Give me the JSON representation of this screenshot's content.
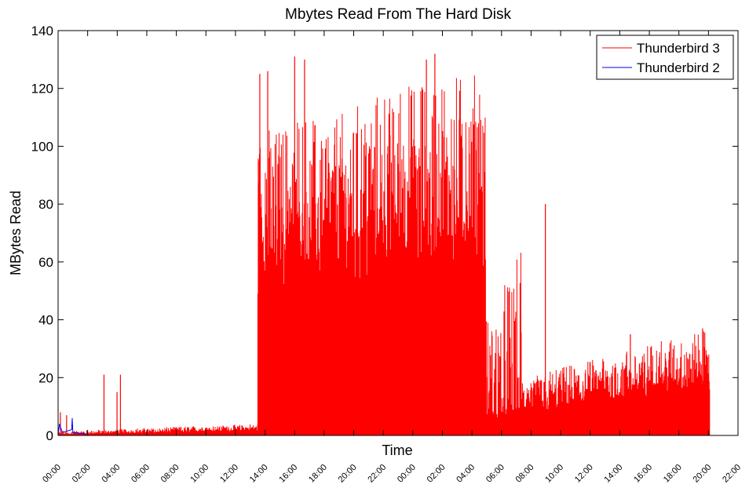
{
  "chart_data": {
    "type": "line",
    "title": "Mbytes Read From The Hard Disk",
    "xlabel": "Time",
    "ylabel": "MBytes Read",
    "ylim": [
      0,
      140
    ],
    "yticks": [
      0,
      20,
      40,
      60,
      80,
      100,
      120,
      140
    ],
    "xlim": [
      0,
      24
    ],
    "xtick_labels": [
      "00:00",
      "02:00",
      "04:00",
      "06:00",
      "08:00",
      "10:00",
      "12:00",
      "14:00",
      "16:00",
      "18:00",
      "20:00",
      "22:00",
      "00:00",
      "02:00",
      "04:00",
      "06:00",
      "08:00",
      "10:00",
      "12:00",
      "14:00",
      "16:00",
      "18:00",
      "20:00",
      "22:00"
    ],
    "x_unit": "hours since first 00:00 tick (2-hour interval between ticks)",
    "legend_position": "top-right",
    "grid": false,
    "series": [
      {
        "name": "Thunderbird 3",
        "color": "#ff0000",
        "segments": [
          {
            "x_start": 0.0,
            "x_end": 7.05,
            "base": [
              0.5,
              2.2
            ],
            "peak": [
              1.5,
              4.0
            ]
          },
          {
            "x_start": 7.05,
            "x_end": 15.1,
            "base": [
              70,
              80
            ],
            "peak": [
              105,
              130
            ]
          },
          {
            "x_start": 15.1,
            "x_end": 16.4,
            "base": [
              8,
              10
            ],
            "peak": [
              40,
              65
            ]
          },
          {
            "x_start": 16.4,
            "x_end": 23.0,
            "base": [
              10,
              22
            ],
            "peak": [
              20,
              37
            ]
          }
        ],
        "spikes": [
          {
            "x": 0.08,
            "y": 8
          },
          {
            "x": 0.3,
            "y": 7
          },
          {
            "x": 1.62,
            "y": 21
          },
          {
            "x": 2.08,
            "y": 15
          },
          {
            "x": 2.2,
            "y": 21
          },
          {
            "x": 7.1,
            "y": 95
          },
          {
            "x": 7.12,
            "y": 125
          },
          {
            "x": 7.4,
            "y": 126
          },
          {
            "x": 8.35,
            "y": 131
          },
          {
            "x": 8.7,
            "y": 130
          },
          {
            "x": 13.0,
            "y": 130
          },
          {
            "x": 13.3,
            "y": 132
          },
          {
            "x": 17.2,
            "y": 80
          },
          {
            "x": 20.2,
            "y": 35
          },
          {
            "x": 22.75,
            "y": 37
          }
        ]
      },
      {
        "name": "Thunderbird 2",
        "color": "#0000ff",
        "points": [
          [
            0.0,
            0.5
          ],
          [
            0.05,
            4
          ],
          [
            0.15,
            1
          ],
          [
            0.48,
            2
          ],
          [
            0.5,
            6
          ],
          [
            0.52,
            1
          ],
          [
            1.0,
            0.5
          ]
        ]
      }
    ]
  }
}
